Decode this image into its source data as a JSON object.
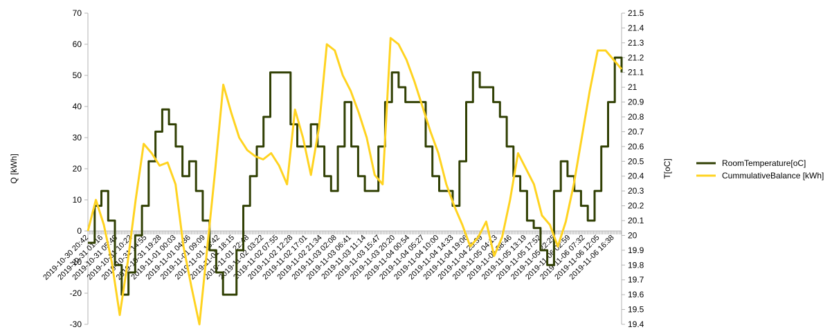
{
  "chart_data": {
    "type": "line",
    "title": "",
    "ylabel": "Q [kWh]",
    "y2label": "T[oC]",
    "ylim": [
      -30,
      70
    ],
    "y2lim": [
      19.4,
      21.5
    ],
    "yticks": [
      -30,
      -20,
      -10,
      0,
      10,
      20,
      30,
      40,
      50,
      60,
      70
    ],
    "y2ticks": [
      "19.4",
      "19.5",
      "19.6",
      "19.7",
      "19.8",
      "19.9",
      "20",
      "20.1",
      "20.2",
      "20.3",
      "20.4",
      "20.5",
      "20.6",
      "20.7",
      "20.8",
      "20.9",
      "21",
      "21.1",
      "21.2",
      "21.3",
      "21.4",
      "21.5"
    ],
    "grid": false,
    "legend_position": "right",
    "x_ticks": [
      "2019-10-30 20:42",
      "2019-10-31 01:16",
      "2019-10-31 05:49",
      "2019-10-31 10:22",
      "2019-10-31 14:55",
      "2019-10-31 19:28",
      "2019-11-01 00:03",
      "2019-11-01 04:36",
      "2019-11-01 09:09",
      "2019-11-01 13:42",
      "2019-11-01 18:15",
      "2019-11-01 22:48",
      "2019-11-02 03:22",
      "2019-11-02 07:55",
      "2019-11-02 12:28",
      "2019-11-02 17:01",
      "2019-11-02 21:34",
      "2019-11-03 02:08",
      "2019-11-03 06:41",
      "2019-11-03 11:14",
      "2019-11-03 15:47",
      "2019-11-03 20:20",
      "2019-11-04 00:54",
      "2019-11-04 05:27",
      "2019-11-04 10:00",
      "2019-11-04 14:33",
      "2019-11-04 19:06",
      "2019-11-04 23:39",
      "2019-11-05 04:13",
      "2019-11-05 08:46",
      "2019-11-05 13:19",
      "2019-11-05 17:52",
      "2019-11-05 22:25",
      "2019-11-06 02:59",
      "2019-11-06 07:32",
      "2019-11-06 12:05",
      "2019-11-06 16:38"
    ],
    "series": [
      {
        "name": "RoomTemperature[oC]",
        "axis": "right",
        "color": "#314004",
        "step": true,
        "points": [
          [
            0,
            19.95
          ],
          [
            1,
            20.2
          ],
          [
            2,
            20.3
          ],
          [
            3,
            20.1
          ],
          [
            4,
            19.8
          ],
          [
            5,
            19.6
          ],
          [
            6,
            19.75
          ],
          [
            7,
            20.0
          ],
          [
            8,
            20.2
          ],
          [
            9,
            20.5
          ],
          [
            10,
            20.7
          ],
          [
            11,
            20.85
          ],
          [
            12,
            20.75
          ],
          [
            13,
            20.6
          ],
          [
            14,
            20.4
          ],
          [
            15,
            20.5
          ],
          [
            16,
            20.3
          ],
          [
            17,
            20.1
          ],
          [
            18,
            19.9
          ],
          [
            19,
            19.75
          ],
          [
            20,
            19.6
          ],
          [
            21,
            19.6
          ],
          [
            22,
            19.9
          ],
          [
            23,
            20.2
          ],
          [
            24,
            20.4
          ],
          [
            25,
            20.6
          ],
          [
            26,
            20.8
          ],
          [
            27,
            21.1
          ],
          [
            28,
            21.1
          ],
          [
            29,
            21.1
          ],
          [
            30,
            20.75
          ],
          [
            31,
            20.6
          ],
          [
            32,
            20.6
          ],
          [
            33,
            20.75
          ],
          [
            34,
            20.6
          ],
          [
            35,
            20.4
          ],
          [
            36,
            20.3
          ],
          [
            37,
            20.6
          ],
          [
            38,
            20.9
          ],
          [
            39,
            20.6
          ],
          [
            40,
            20.4
          ],
          [
            41,
            20.3
          ],
          [
            42,
            20.3
          ],
          [
            43,
            20.6
          ],
          [
            44,
            20.9
          ],
          [
            45,
            21.1
          ],
          [
            46,
            21.0
          ],
          [
            47,
            20.9
          ],
          [
            48,
            20.9
          ],
          [
            49,
            20.9
          ],
          [
            50,
            20.6
          ],
          [
            51,
            20.4
          ],
          [
            52,
            20.3
          ],
          [
            53,
            20.3
          ],
          [
            54,
            20.2
          ],
          [
            55,
            20.5
          ],
          [
            56,
            20.9
          ],
          [
            57,
            21.1
          ],
          [
            58,
            21.0
          ],
          [
            59,
            21.0
          ],
          [
            60,
            20.9
          ],
          [
            61,
            20.8
          ],
          [
            62,
            20.6
          ],
          [
            63,
            20.4
          ],
          [
            64,
            20.3
          ],
          [
            65,
            20.1
          ],
          [
            66,
            20.05
          ],
          [
            67,
            19.9
          ],
          [
            68,
            19.8
          ],
          [
            69,
            20.3
          ],
          [
            70,
            20.5
          ],
          [
            71,
            20.4
          ],
          [
            72,
            20.3
          ],
          [
            73,
            20.2
          ],
          [
            74,
            20.1
          ],
          [
            75,
            20.3
          ],
          [
            76,
            20.6
          ],
          [
            77,
            20.9
          ],
          [
            78,
            21.2
          ],
          [
            79,
            21.1
          ]
        ]
      },
      {
        "name": "CummulativeBalance [kWh]",
        "axis": "left",
        "color": "#ffd320",
        "step": false,
        "points": [
          [
            0,
            0
          ],
          [
            1,
            10
          ],
          [
            2,
            2
          ],
          [
            3,
            -10
          ],
          [
            4,
            -27
          ],
          [
            5,
            -10
          ],
          [
            6,
            10
          ],
          [
            7,
            28
          ],
          [
            8,
            25
          ],
          [
            9,
            21
          ],
          [
            10,
            22
          ],
          [
            11,
            15
          ],
          [
            12,
            -5
          ],
          [
            13,
            -18
          ],
          [
            14,
            -30
          ],
          [
            15,
            -5
          ],
          [
            16,
            20
          ],
          [
            17,
            47
          ],
          [
            18,
            38
          ],
          [
            19,
            30
          ],
          [
            20,
            26
          ],
          [
            21,
            24
          ],
          [
            22,
            23
          ],
          [
            23,
            25
          ],
          [
            24,
            21
          ],
          [
            25,
            15
          ],
          [
            26,
            39
          ],
          [
            27,
            30
          ],
          [
            28,
            18
          ],
          [
            29,
            33
          ],
          [
            30,
            60
          ],
          [
            31,
            58
          ],
          [
            32,
            50
          ],
          [
            33,
            45
          ],
          [
            34,
            38
          ],
          [
            35,
            30
          ],
          [
            36,
            18
          ],
          [
            37,
            15
          ],
          [
            38,
            62
          ],
          [
            39,
            60
          ],
          [
            40,
            55
          ],
          [
            41,
            48
          ],
          [
            42,
            40
          ],
          [
            43,
            32
          ],
          [
            44,
            25
          ],
          [
            45,
            15
          ],
          [
            46,
            8
          ],
          [
            47,
            2
          ],
          [
            48,
            -5
          ],
          [
            49,
            -2
          ],
          [
            50,
            3
          ],
          [
            51,
            -8
          ],
          [
            52,
            -2
          ],
          [
            53,
            10
          ],
          [
            54,
            25
          ],
          [
            55,
            20
          ],
          [
            56,
            15
          ],
          [
            57,
            5
          ],
          [
            58,
            2
          ],
          [
            59,
            -5
          ],
          [
            60,
            3
          ],
          [
            61,
            15
          ],
          [
            62,
            30
          ],
          [
            63,
            45
          ],
          [
            64,
            58
          ],
          [
            65,
            58
          ],
          [
            66,
            55
          ],
          [
            67,
            52
          ]
        ]
      }
    ]
  }
}
